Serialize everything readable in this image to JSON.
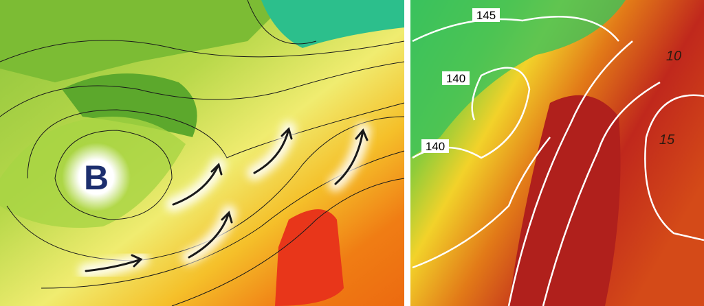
{
  "left_map": {
    "low_pressure_label": "B"
  },
  "right_map": {
    "contour_labels": [
      "145",
      "140",
      "140"
    ],
    "isotherm_labels": [
      "10",
      "15"
    ]
  }
}
